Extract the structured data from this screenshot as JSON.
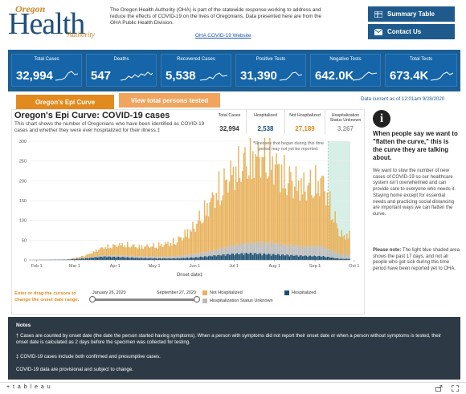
{
  "header": {
    "logo": {
      "top": "Oregon",
      "main": "Health",
      "bottom": "Authority"
    },
    "intro": "The Oregon Health Authority (OHA) is part of the statewide response working to address and reduce the effects of COVID-19 on the lives of Oregonians. Data presented here are from the OHA Public Health Division.",
    "link": "OHA COVID-19 Website",
    "buttons": {
      "summary": "Summary Table",
      "contact": "Contact Us"
    }
  },
  "kpis": [
    {
      "label": "Total Cases",
      "value": "32,994"
    },
    {
      "label": "Deaths",
      "value": "547"
    },
    {
      "label": "Recovered Cases",
      "value": "5,538"
    },
    {
      "label": "Positive Tests",
      "value": "31,390"
    },
    {
      "label": "Negative Tests",
      "value": "642.0K"
    },
    {
      "label": "Total Tests",
      "value": "673.4K"
    }
  ],
  "tabs": {
    "epi": "Oregon's Epi Curve",
    "tested": "View total persons tested"
  },
  "data_current": "Data current as of 12:01am 9/28/2020",
  "chart_header": {
    "title": "Oregon's Epi Curve: COVID-19 cases",
    "subtitle": "This chart shows the number of Oregonians who have been identified as COVID-19 cases and whether they were ever hospitalized for their illness.‡"
  },
  "stats": [
    {
      "label": "Total Cases",
      "value": "32,994",
      "color": "#333333"
    },
    {
      "label": "Hospitalized",
      "value": "2,538",
      "color": "#1b4f72"
    },
    {
      "label": "Not Hospitalized",
      "value": "27,189",
      "color": "#e38a1e"
    },
    {
      "label": "Hospitalization Status Unknown",
      "value": "3,267",
      "color": "#999999"
    }
  ],
  "chart_data": {
    "type": "bar",
    "stacked": true,
    "x_start": "2020-01-26",
    "x_end": "2020-09-27",
    "x_ticks": [
      "Feb 1",
      "Mar 1",
      "Apr 1",
      "May 1",
      "Jun 1",
      "Jul 1",
      "Aug 1",
      "Sep 1",
      "Oct 1"
    ],
    "xlabel": "Onset date‡",
    "ylim": [
      0,
      300
    ],
    "y_ticks": [
      "0",
      "50",
      "100",
      "150",
      "200",
      "250",
      "300"
    ],
    "annotation": "*Illnesses that began during this time period may not yet be reported.",
    "highlight_note": "light blue shaded area shows the past 17 days",
    "series": [
      {
        "name": "Not Hospitalized",
        "color": "#e8b25c"
      },
      {
        "name": "Hospitalized",
        "color": "#1b4f72"
      },
      {
        "name": "Hospitalization Status Unknown",
        "color": "#bbbbbb"
      }
    ],
    "weekly_profile": [
      {
        "week_of": "2020-01-26",
        "not_hospitalized": 0,
        "hospitalized": 0,
        "unknown": 0
      },
      {
        "week_of": "2020-02-23",
        "not_hospitalized": 0,
        "hospitalized": 1,
        "unknown": 0
      },
      {
        "week_of": "2020-03-08",
        "not_hospitalized": 5,
        "hospitalized": 4,
        "unknown": 1
      },
      {
        "week_of": "2020-03-22",
        "not_hospitalized": 20,
        "hospitalized": 8,
        "unknown": 3
      },
      {
        "week_of": "2020-04-05",
        "not_hospitalized": 28,
        "hospitalized": 7,
        "unknown": 4
      },
      {
        "week_of": "2020-04-19",
        "not_hospitalized": 25,
        "hospitalized": 5,
        "unknown": 4
      },
      {
        "week_of": "2020-05-03",
        "not_hospitalized": 28,
        "hospitalized": 4,
        "unknown": 4
      },
      {
        "week_of": "2020-05-17",
        "not_hospitalized": 38,
        "hospitalized": 4,
        "unknown": 5
      },
      {
        "week_of": "2020-05-31",
        "not_hospitalized": 70,
        "hospitalized": 6,
        "unknown": 8
      },
      {
        "week_of": "2020-06-14",
        "not_hospitalized": 135,
        "hospitalized": 10,
        "unknown": 12
      },
      {
        "week_of": "2020-06-28",
        "not_hospitalized": 185,
        "hospitalized": 14,
        "unknown": 20
      },
      {
        "week_of": "2020-07-12",
        "not_hospitalized": 220,
        "hospitalized": 16,
        "unknown": 25
      },
      {
        "week_of": "2020-07-26",
        "not_hospitalized": 225,
        "hospitalized": 14,
        "unknown": 28
      },
      {
        "week_of": "2020-08-09",
        "not_hospitalized": 180,
        "hospitalized": 12,
        "unknown": 24
      },
      {
        "week_of": "2020-08-23",
        "not_hospitalized": 155,
        "hospitalized": 10,
        "unknown": 22
      },
      {
        "week_of": "2020-09-06",
        "not_hospitalized": 170,
        "hospitalized": 9,
        "unknown": 24
      },
      {
        "week_of": "2020-09-20",
        "not_hospitalized": 50,
        "hospitalized": 3,
        "unknown": 10
      }
    ]
  },
  "slider": {
    "hint": "Enter or drag the cursors to change the onset date range.",
    "start": "January 26, 2020",
    "end": "September 27, 2020"
  },
  "legend": [
    {
      "name": "Not Hospitalized",
      "color": "#e8b25c"
    },
    {
      "name": "Hospitalized",
      "color": "#1b4f72"
    },
    {
      "name": "Hospitalization Status Unknown",
      "color": "#bbbbbb"
    }
  ],
  "info": {
    "heading": "When people say we want to \"flatten the curve,\" this is the curve they are talking about.",
    "body": "We want to slow the number of new cases of COVID-19 so our healthcare system isn't overwhelmed and can provide care to everyone who needs it. Staying home except for essential needs and practicing social distancing are important ways we can flatten the curve.",
    "note_label": "Please note:",
    "note": " The light blue shaded area shows the past 17 days, and not all people who got sick during this time period have been reported yet to OHA."
  },
  "notes": {
    "heading": "Notes",
    "items": [
      "† Cases are counted by onset date (the date the person started having symptoms). When a person with symptoms did not report their onset date or when a person without symptoms is tested, their onset date is calculated as 2 days before the specimen was collected for testing.",
      "‡ COVID-19 cases include both confirmed and presumptive cases.",
      "COVID-19 data are provisional and subject to change."
    ]
  },
  "footer": {
    "brand": "+ t a b l e a u"
  },
  "colors": {
    "brand_blue": "#1e5a8c",
    "orange": "#e38a1e",
    "bar_orange": "#e8b25c",
    "dark_blue": "#1b4f72",
    "notes_bg": "#2d3a45"
  }
}
